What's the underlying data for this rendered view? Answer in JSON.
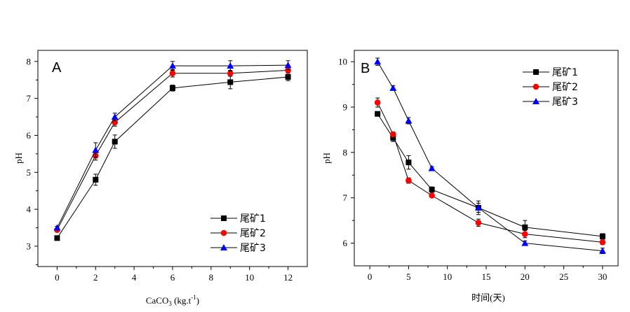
{
  "chart_data": [
    {
      "type": "line",
      "panel_label": "A",
      "xlabel_main": "CaCO",
      "xlabel_sub": "3",
      "xlabel_rest": " (kg.t",
      "xlabel_sup": "-1",
      "xlabel_close": ")",
      "ylabel": "pH",
      "xlim": [
        -1,
        13
      ],
      "ylim": [
        2.45,
        8.3
      ],
      "xticks": [
        0,
        2,
        4,
        6,
        8,
        10,
        12
      ],
      "yticks": [
        3,
        4,
        5,
        6,
        7,
        8
      ],
      "legend_position": "bottom-right",
      "x": [
        0,
        2,
        3,
        6,
        9,
        12
      ],
      "series": [
        {
          "name": "尾矿1",
          "color": "#000000",
          "marker": "square",
          "values": [
            3.22,
            4.8,
            5.83,
            7.28,
            7.44,
            7.58
          ],
          "errors": [
            0.04,
            0.15,
            0.18,
            0.08,
            0.18,
            0.1
          ]
        },
        {
          "name": "尾矿2",
          "color": "#ff0000",
          "marker": "circle",
          "values": [
            3.44,
            5.45,
            6.35,
            7.68,
            7.68,
            7.76
          ],
          "errors": [
            0.04,
            0.12,
            0.1,
            0.1,
            0.08,
            0.06
          ]
        },
        {
          "name": "尾矿3",
          "color": "#0000ff",
          "marker": "triangle",
          "values": [
            3.5,
            5.6,
            6.5,
            7.88,
            7.88,
            7.9
          ],
          "errors": [
            0.04,
            0.2,
            0.1,
            0.12,
            0.14,
            0.12
          ]
        }
      ]
    },
    {
      "type": "line",
      "panel_label": "B",
      "xlabel": "时间(天)",
      "ylabel": "pH",
      "xlim": [
        -2,
        32
      ],
      "ylim": [
        5.5,
        10.25
      ],
      "xticks": [
        0,
        5,
        10,
        15,
        20,
        25,
        30
      ],
      "yticks": [
        6,
        7,
        8,
        9,
        10
      ],
      "legend_position": "top-right",
      "x": [
        1,
        3,
        5,
        8,
        14,
        20,
        30
      ],
      "series": [
        {
          "name": "尾矿1",
          "color": "#000000",
          "marker": "square",
          "values": [
            8.85,
            8.32,
            7.78,
            7.18,
            6.78,
            6.35,
            6.15
          ],
          "errors": [
            0.05,
            0.08,
            0.15,
            0.06,
            0.15,
            0.15,
            0.06
          ]
        },
        {
          "name": "尾矿2",
          "color": "#ff0000",
          "marker": "circle",
          "values": [
            9.1,
            8.4,
            7.38,
            7.05,
            6.45,
            6.2,
            6.02
          ],
          "errors": [
            0.1,
            0.05,
            0.06,
            0.04,
            0.08,
            0.08,
            0.05
          ]
        },
        {
          "name": "尾矿3",
          "color": "#0000ff",
          "marker": "triangle",
          "values": [
            10.0,
            9.42,
            8.7,
            7.65,
            6.78,
            6.0,
            5.83
          ],
          "errors": [
            0.08,
            0.05,
            0.07,
            0.03,
            0.1,
            0.05,
            0.06
          ]
        }
      ]
    }
  ]
}
